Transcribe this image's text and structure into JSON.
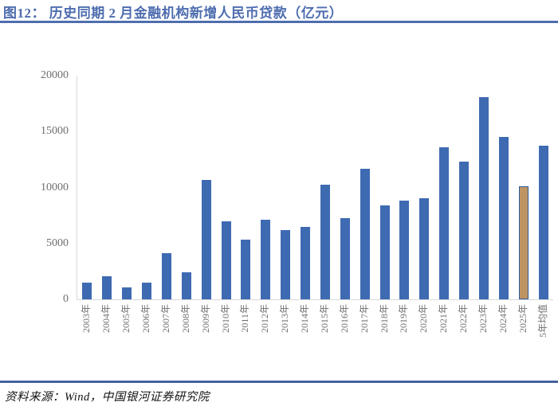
{
  "title": "图12： 历史同期 2 月金融机构新增人民币贷款（亿元）",
  "source": "资料来源：Wind，中国银河证券研究院",
  "colors": {
    "title_blue": "#4E6DAF",
    "rule_blue": "#4F6DAE",
    "bar_blue": "#3E6AB2",
    "highlight_fill": "#BE9562",
    "highlight_border": "#2E5A9E",
    "axis_line_gray": "#D9D9D9",
    "axis_label_gray": "#6F6F6F"
  },
  "chart_data": {
    "type": "bar",
    "title": "历史同期2月金融机构新增人民币贷款（亿元）",
    "xlabel": "",
    "ylabel": "",
    "categories": [
      "2003年",
      "2004年",
      "2005年",
      "2006年",
      "2007年",
      "2008年",
      "2009年",
      "2010年",
      "2011年",
      "2012年",
      "2013年",
      "2014年",
      "2015年",
      "2016年",
      "2017年",
      "2018年",
      "2019年",
      "2020年",
      "2021年",
      "2022年",
      "2023年",
      "2024年",
      "2025年",
      "5年均值"
    ],
    "values": [
      1485,
      2094,
      1068,
      1491,
      4138,
      2434,
      10700,
      7001,
      5356,
      7107,
      6200,
      6445,
      10240,
      7266,
      11700,
      8393,
      8858,
      9057,
      13600,
      12300,
      18100,
      14500,
      10100,
      13720
    ],
    "highlight_category": "2025年",
    "yticks": [
      0,
      5000,
      10000,
      15000,
      20000
    ],
    "ylim": [
      0,
      20000
    ],
    "grid": false,
    "legend": "none"
  }
}
